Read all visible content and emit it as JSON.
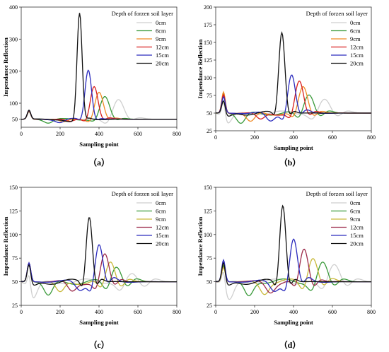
{
  "figure": {
    "panel_labels": [
      "（a）",
      "（b）",
      "（c）",
      "（d）"
    ]
  },
  "chart_data": [
    {
      "type": "line",
      "panel": "a",
      "xlabel": "Sampling point",
      "ylabel": "Impendance Reflection",
      "xlim": [
        0,
        800
      ],
      "ylim": [
        25,
        400
      ],
      "xticks": [
        0,
        200,
        400,
        600,
        800
      ],
      "yticks": [
        50,
        100,
        200,
        300,
        400
      ],
      "grid": false,
      "legend_title": "Depth of forzen soil layer",
      "legend_position": "top-right",
      "series": [
        {
          "name": "0cm",
          "color": "#cfcfcf",
          "initial_peak": [
            40,
            72
          ],
          "main_peak": [
            500,
            115
          ],
          "main_width": 28,
          "trough": [
            430,
            42
          ]
        },
        {
          "name": "6cm",
          "color": "#3a9a3a",
          "initial_peak": [
            40,
            74
          ],
          "main_peak": [
            430,
            120
          ],
          "main_width": 25,
          "trough": [
            140,
            38
          ]
        },
        {
          "name": "9cm",
          "color": "#f08a24",
          "initial_peak": [
            40,
            75
          ],
          "main_peak": [
            400,
            135
          ],
          "main_width": 22,
          "trough": [
            220,
            40
          ]
        },
        {
          "name": "12cm",
          "color": "#d81e1e",
          "initial_peak": [
            40,
            76
          ],
          "main_peak": [
            375,
            155
          ],
          "main_width": 20,
          "trough": [
            250,
            41
          ]
        },
        {
          "name": "15cm",
          "color": "#2b2bbd",
          "initial_peak": [
            40,
            77
          ],
          "main_peak": [
            345,
            205
          ],
          "main_width": 17,
          "trough": [
            200,
            40
          ]
        },
        {
          "name": "20cm",
          "color": "#111111",
          "initial_peak": [
            40,
            78
          ],
          "main_peak": [
            300,
            380
          ],
          "main_width": 13,
          "trough": [
            250,
            42
          ]
        }
      ]
    },
    {
      "type": "line",
      "panel": "b",
      "xlabel": "Sampling point",
      "ylabel": "Impendance Reflection",
      "xlim": [
        0,
        800
      ],
      "ylim": [
        25,
        200
      ],
      "xticks": [
        0,
        200,
        400,
        600,
        800
      ],
      "yticks": [
        25,
        50,
        75,
        100,
        125,
        150,
        175,
        200
      ],
      "grid": false,
      "legend_title": "Depth of forzen soil layer",
      "legend_position": "top-right",
      "series": [
        {
          "name": "0cm",
          "color": "#cfcfcf",
          "initial_peak": [
            40,
            75
          ],
          "main_peak": [
            560,
            70
          ],
          "main_width": 30,
          "trough": [
            60,
            35
          ]
        },
        {
          "name": "6cm",
          "color": "#3a9a3a",
          "initial_peak": [
            40,
            78
          ],
          "main_peak": [
            480,
            77
          ],
          "main_width": 26,
          "trough": [
            130,
            35
          ]
        },
        {
          "name": "9cm",
          "color": "#f08a24",
          "initial_peak": [
            40,
            80
          ],
          "main_peak": [
            450,
            87
          ],
          "main_width": 24,
          "trough": [
            180,
            37
          ]
        },
        {
          "name": "12cm",
          "color": "#d81e1e",
          "initial_peak": [
            40,
            76
          ],
          "main_peak": [
            430,
            94
          ],
          "main_width": 22,
          "trough": [
            230,
            40
          ]
        },
        {
          "name": "15cm",
          "color": "#2b2bbd",
          "initial_peak": [
            40,
            73
          ],
          "main_peak": [
            390,
            106
          ],
          "main_width": 20,
          "trough": [
            280,
            38
          ]
        },
        {
          "name": "20cm",
          "color": "#111111",
          "initial_peak": [
            40,
            70
          ],
          "main_peak": [
            340,
            165
          ],
          "main_width": 16,
          "trough": [
            60,
            44
          ]
        }
      ]
    },
    {
      "type": "line",
      "panel": "c",
      "xlabel": "Sampling point",
      "ylabel": "Impendance Reflection",
      "xlim": [
        0,
        800
      ],
      "ylim": [
        25,
        150
      ],
      "xticks": [
        0,
        200,
        400,
        600,
        800
      ],
      "yticks": [
        25,
        50,
        75,
        100,
        125,
        150
      ],
      "grid": false,
      "legend_title": "Depth of forzen soil layer",
      "legend_position": "top-right",
      "series": [
        {
          "name": "0cm",
          "color": "#cfcfcf",
          "initial_peak": [
            40,
            68
          ],
          "main_peak": [
            570,
            59
          ],
          "main_width": 30,
          "trough": [
            60,
            32
          ]
        },
        {
          "name": "6cm",
          "color": "#3a9a3a",
          "initial_peak": [
            40,
            69
          ],
          "main_peak": [
            490,
            67
          ],
          "main_width": 26,
          "trough": [
            140,
            35
          ]
        },
        {
          "name": "9cm",
          "color": "#c9b93a",
          "initial_peak": [
            40,
            69
          ],
          "main_peak": [
            460,
            71
          ],
          "main_width": 24,
          "trough": [
            200,
            38
          ]
        },
        {
          "name": "12cm",
          "color": "#9c2a4a",
          "initial_peak": [
            40,
            70
          ],
          "main_peak": [
            430,
            78
          ],
          "main_width": 22,
          "trough": [
            260,
            40
          ]
        },
        {
          "name": "15cm",
          "color": "#2b2bbd",
          "initial_peak": [
            40,
            70
          ],
          "main_peak": [
            400,
            90
          ],
          "main_width": 20,
          "trough": [
            300,
            42
          ]
        },
        {
          "name": "20cm",
          "color": "#111111",
          "initial_peak": [
            40,
            70
          ],
          "main_peak": [
            350,
            120
          ],
          "main_width": 16,
          "trough": [
            60,
            45
          ]
        }
      ]
    },
    {
      "type": "line",
      "panel": "d",
      "xlabel": "Sampling point",
      "ylabel": "Impendance Reflection",
      "xlim": [
        0,
        800
      ],
      "ylim": [
        25,
        150
      ],
      "xticks": [
        0,
        200,
        400,
        600,
        800
      ],
      "yticks": [
        25,
        50,
        75,
        100,
        125,
        150
      ],
      "grid": false,
      "legend_title": "Depth of forzen soil layer",
      "legend_position": "top-right",
      "series": [
        {
          "name": "0cm",
          "color": "#cfcfcf",
          "initial_peak": [
            40,
            67
          ],
          "main_peak": [
            610,
            69
          ],
          "main_width": 30,
          "trough": [
            70,
            31
          ]
        },
        {
          "name": "6cm",
          "color": "#3a9a3a",
          "initial_peak": [
            40,
            67
          ],
          "main_peak": [
            550,
            71
          ],
          "main_width": 27,
          "trough": [
            170,
            35
          ]
        },
        {
          "name": "9cm",
          "color": "#c9b93a",
          "initial_peak": [
            40,
            65
          ],
          "main_peak": [
            500,
            77
          ],
          "main_width": 25,
          "trough": [
            250,
            38
          ]
        },
        {
          "name": "12cm",
          "color": "#9c2a4a",
          "initial_peak": [
            40,
            70
          ],
          "main_peak": [
            455,
            84
          ],
          "main_width": 22,
          "trough": [
            280,
            40
          ]
        },
        {
          "name": "15cm",
          "color": "#2b2bbd",
          "initial_peak": [
            40,
            73
          ],
          "main_peak": [
            400,
            96
          ],
          "main_width": 20,
          "trough": [
            300,
            41
          ]
        },
        {
          "name": "20cm",
          "color": "#111111",
          "initial_peak": [
            40,
            72
          ],
          "main_peak": [
            345,
            132
          ],
          "main_width": 16,
          "trough": [
            60,
            45
          ]
        }
      ]
    }
  ]
}
